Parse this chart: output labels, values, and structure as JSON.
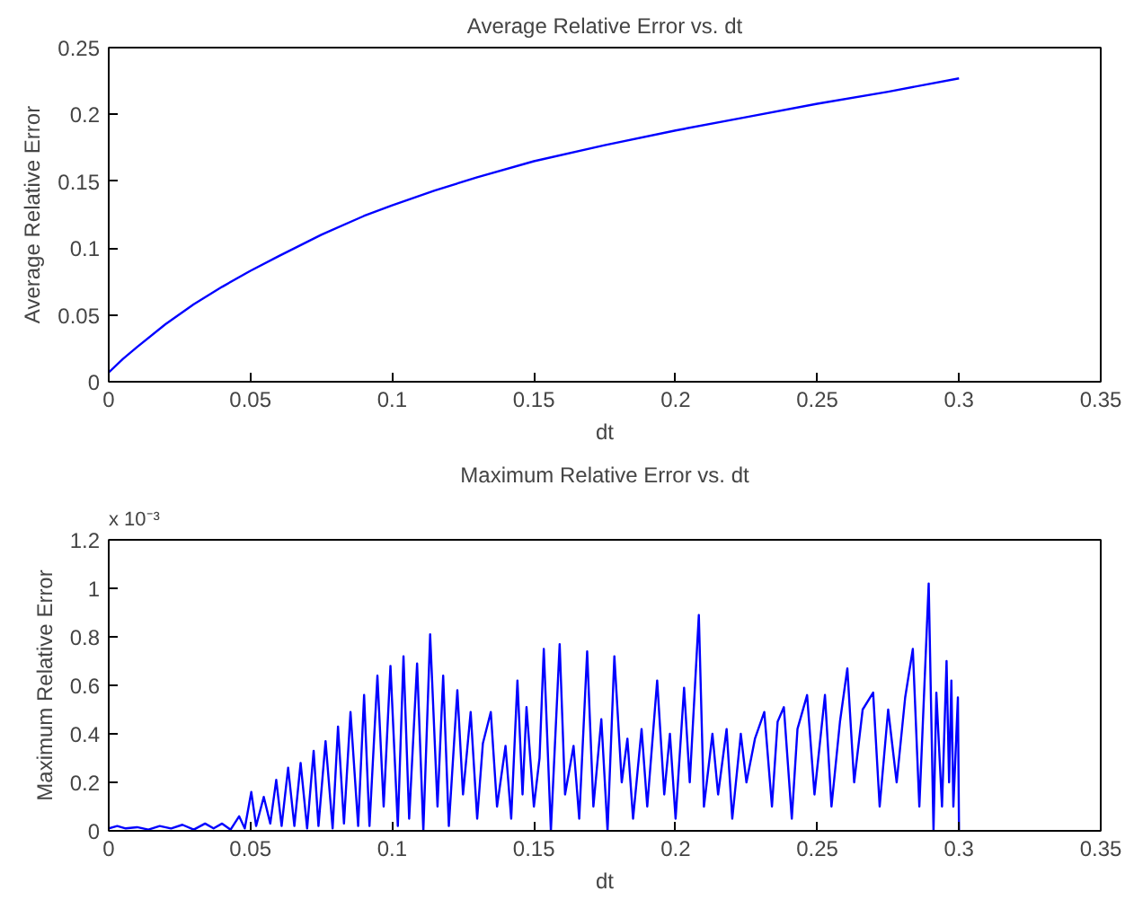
{
  "chart_data": [
    {
      "type": "line",
      "title": "Average Relative Error vs. dt",
      "xlabel": "dt",
      "ylabel": "Average Relative Error",
      "xlim": [
        0,
        0.35
      ],
      "ylim": [
        0,
        0.25
      ],
      "xticks": [
        0,
        0.05,
        0.1,
        0.15,
        0.2,
        0.25,
        0.3,
        0.35
      ],
      "yticks": [
        0,
        0.05,
        0.1,
        0.15,
        0.2,
        0.25
      ],
      "grid": false,
      "series": [
        {
          "color": "#0000ff",
          "x": [
            0,
            0.005,
            0.01,
            0.02,
            0.03,
            0.04,
            0.05,
            0.06,
            0.075,
            0.09,
            0.1,
            0.115,
            0.13,
            0.15,
            0.175,
            0.2,
            0.225,
            0.25,
            0.275,
            0.3
          ],
          "values": [
            0.007,
            0.017,
            0.026,
            0.043,
            0.058,
            0.071,
            0.083,
            0.094,
            0.11,
            0.124,
            0.132,
            0.143,
            0.153,
            0.165,
            0.177,
            0.188,
            0.198,
            0.208,
            0.217,
            0.227
          ]
        }
      ]
    },
    {
      "type": "line",
      "title": "Maximum Relative Error vs. dt",
      "xlabel": "dt",
      "ylabel": "Maximum Relative Error",
      "annotations": [
        "x 10⁻³"
      ],
      "xlim": [
        0,
        0.35
      ],
      "ylim": [
        0,
        1.2
      ],
      "xticks": [
        0,
        0.05,
        0.1,
        0.15,
        0.2,
        0.25,
        0.3,
        0.35
      ],
      "yticks": [
        0,
        0.2,
        0.4,
        0.6,
        0.8,
        1,
        1.2
      ],
      "grid": false,
      "series": [
        {
          "color": "#0000ff",
          "x": [
            0,
            0.003,
            0.006,
            0.01,
            0.014,
            0.018,
            0.022,
            0.026,
            0.03,
            0.034,
            0.037,
            0.04,
            0.043,
            0.046,
            0.048,
            0.0503,
            0.052,
            0.0547,
            0.057,
            0.0591,
            0.061,
            0.0633,
            0.0655,
            0.0677,
            0.07,
            0.0723,
            0.074,
            0.0765,
            0.079,
            0.0809,
            0.083,
            0.0853,
            0.088,
            0.0901,
            0.092,
            0.0948,
            0.097,
            0.0994,
            0.102,
            0.104,
            0.106,
            0.1088,
            0.111,
            0.1134,
            0.116,
            0.118,
            0.12,
            0.123,
            0.125,
            0.1277,
            0.13,
            0.132,
            0.1348,
            0.137,
            0.14,
            0.142,
            0.1442,
            0.146,
            0.1474,
            0.15,
            0.152,
            0.1535,
            0.156,
            0.1591,
            0.161,
            0.164,
            0.166,
            0.1688,
            0.171,
            0.1738,
            0.176,
            0.1784,
            0.181,
            0.183,
            0.185,
            0.188,
            0.19,
            0.1935,
            0.196,
            0.198,
            0.2,
            0.203,
            0.205,
            0.2082,
            0.21,
            0.213,
            0.215,
            0.218,
            0.22,
            0.223,
            0.225,
            0.228,
            0.2313,
            0.234,
            0.236,
            0.2382,
            0.241,
            0.243,
            0.2464,
            0.249,
            0.2527,
            0.255,
            0.258,
            0.2606,
            0.263,
            0.266,
            0.2697,
            0.272,
            0.275,
            0.278,
            0.281,
            0.2837,
            0.286,
            0.2893,
            0.291,
            0.292,
            0.294,
            0.2956,
            0.2965,
            0.2973,
            0.298,
            0.2996,
            0.3
          ],
          "values": [
            0.01,
            0.02,
            0.01,
            0.015,
            0.005,
            0.02,
            0.01,
            0.025,
            0.005,
            0.03,
            0.01,
            0.03,
            0.005,
            0.06,
            0.01,
            0.16,
            0.02,
            0.14,
            0.03,
            0.21,
            0.02,
            0.26,
            0.02,
            0.28,
            0.01,
            0.33,
            0.02,
            0.37,
            0.01,
            0.43,
            0.03,
            0.49,
            0.02,
            0.56,
            0.02,
            0.64,
            0.1,
            0.68,
            0.02,
            0.72,
            0.05,
            0.69,
            0.0,
            0.81,
            0.1,
            0.64,
            0.02,
            0.58,
            0.15,
            0.49,
            0.05,
            0.36,
            0.49,
            0.1,
            0.35,
            0.05,
            0.62,
            0.15,
            0.51,
            0.1,
            0.3,
            0.75,
            0.0,
            0.77,
            0.15,
            0.35,
            0.05,
            0.74,
            0.1,
            0.46,
            0.0,
            0.72,
            0.2,
            0.38,
            0.05,
            0.42,
            0.1,
            0.62,
            0.15,
            0.4,
            0.05,
            0.59,
            0.2,
            0.89,
            0.1,
            0.4,
            0.15,
            0.42,
            0.05,
            0.4,
            0.2,
            0.38,
            0.49,
            0.1,
            0.45,
            0.51,
            0.05,
            0.42,
            0.56,
            0.15,
            0.56,
            0.1,
            0.45,
            0.67,
            0.2,
            0.5,
            0.57,
            0.1,
            0.5,
            0.2,
            0.55,
            0.75,
            0.1,
            1.02,
            0.0,
            0.57,
            0.1,
            0.7,
            0.2,
            0.62,
            0.1,
            0.55,
            0.0
          ]
        }
      ]
    }
  ]
}
